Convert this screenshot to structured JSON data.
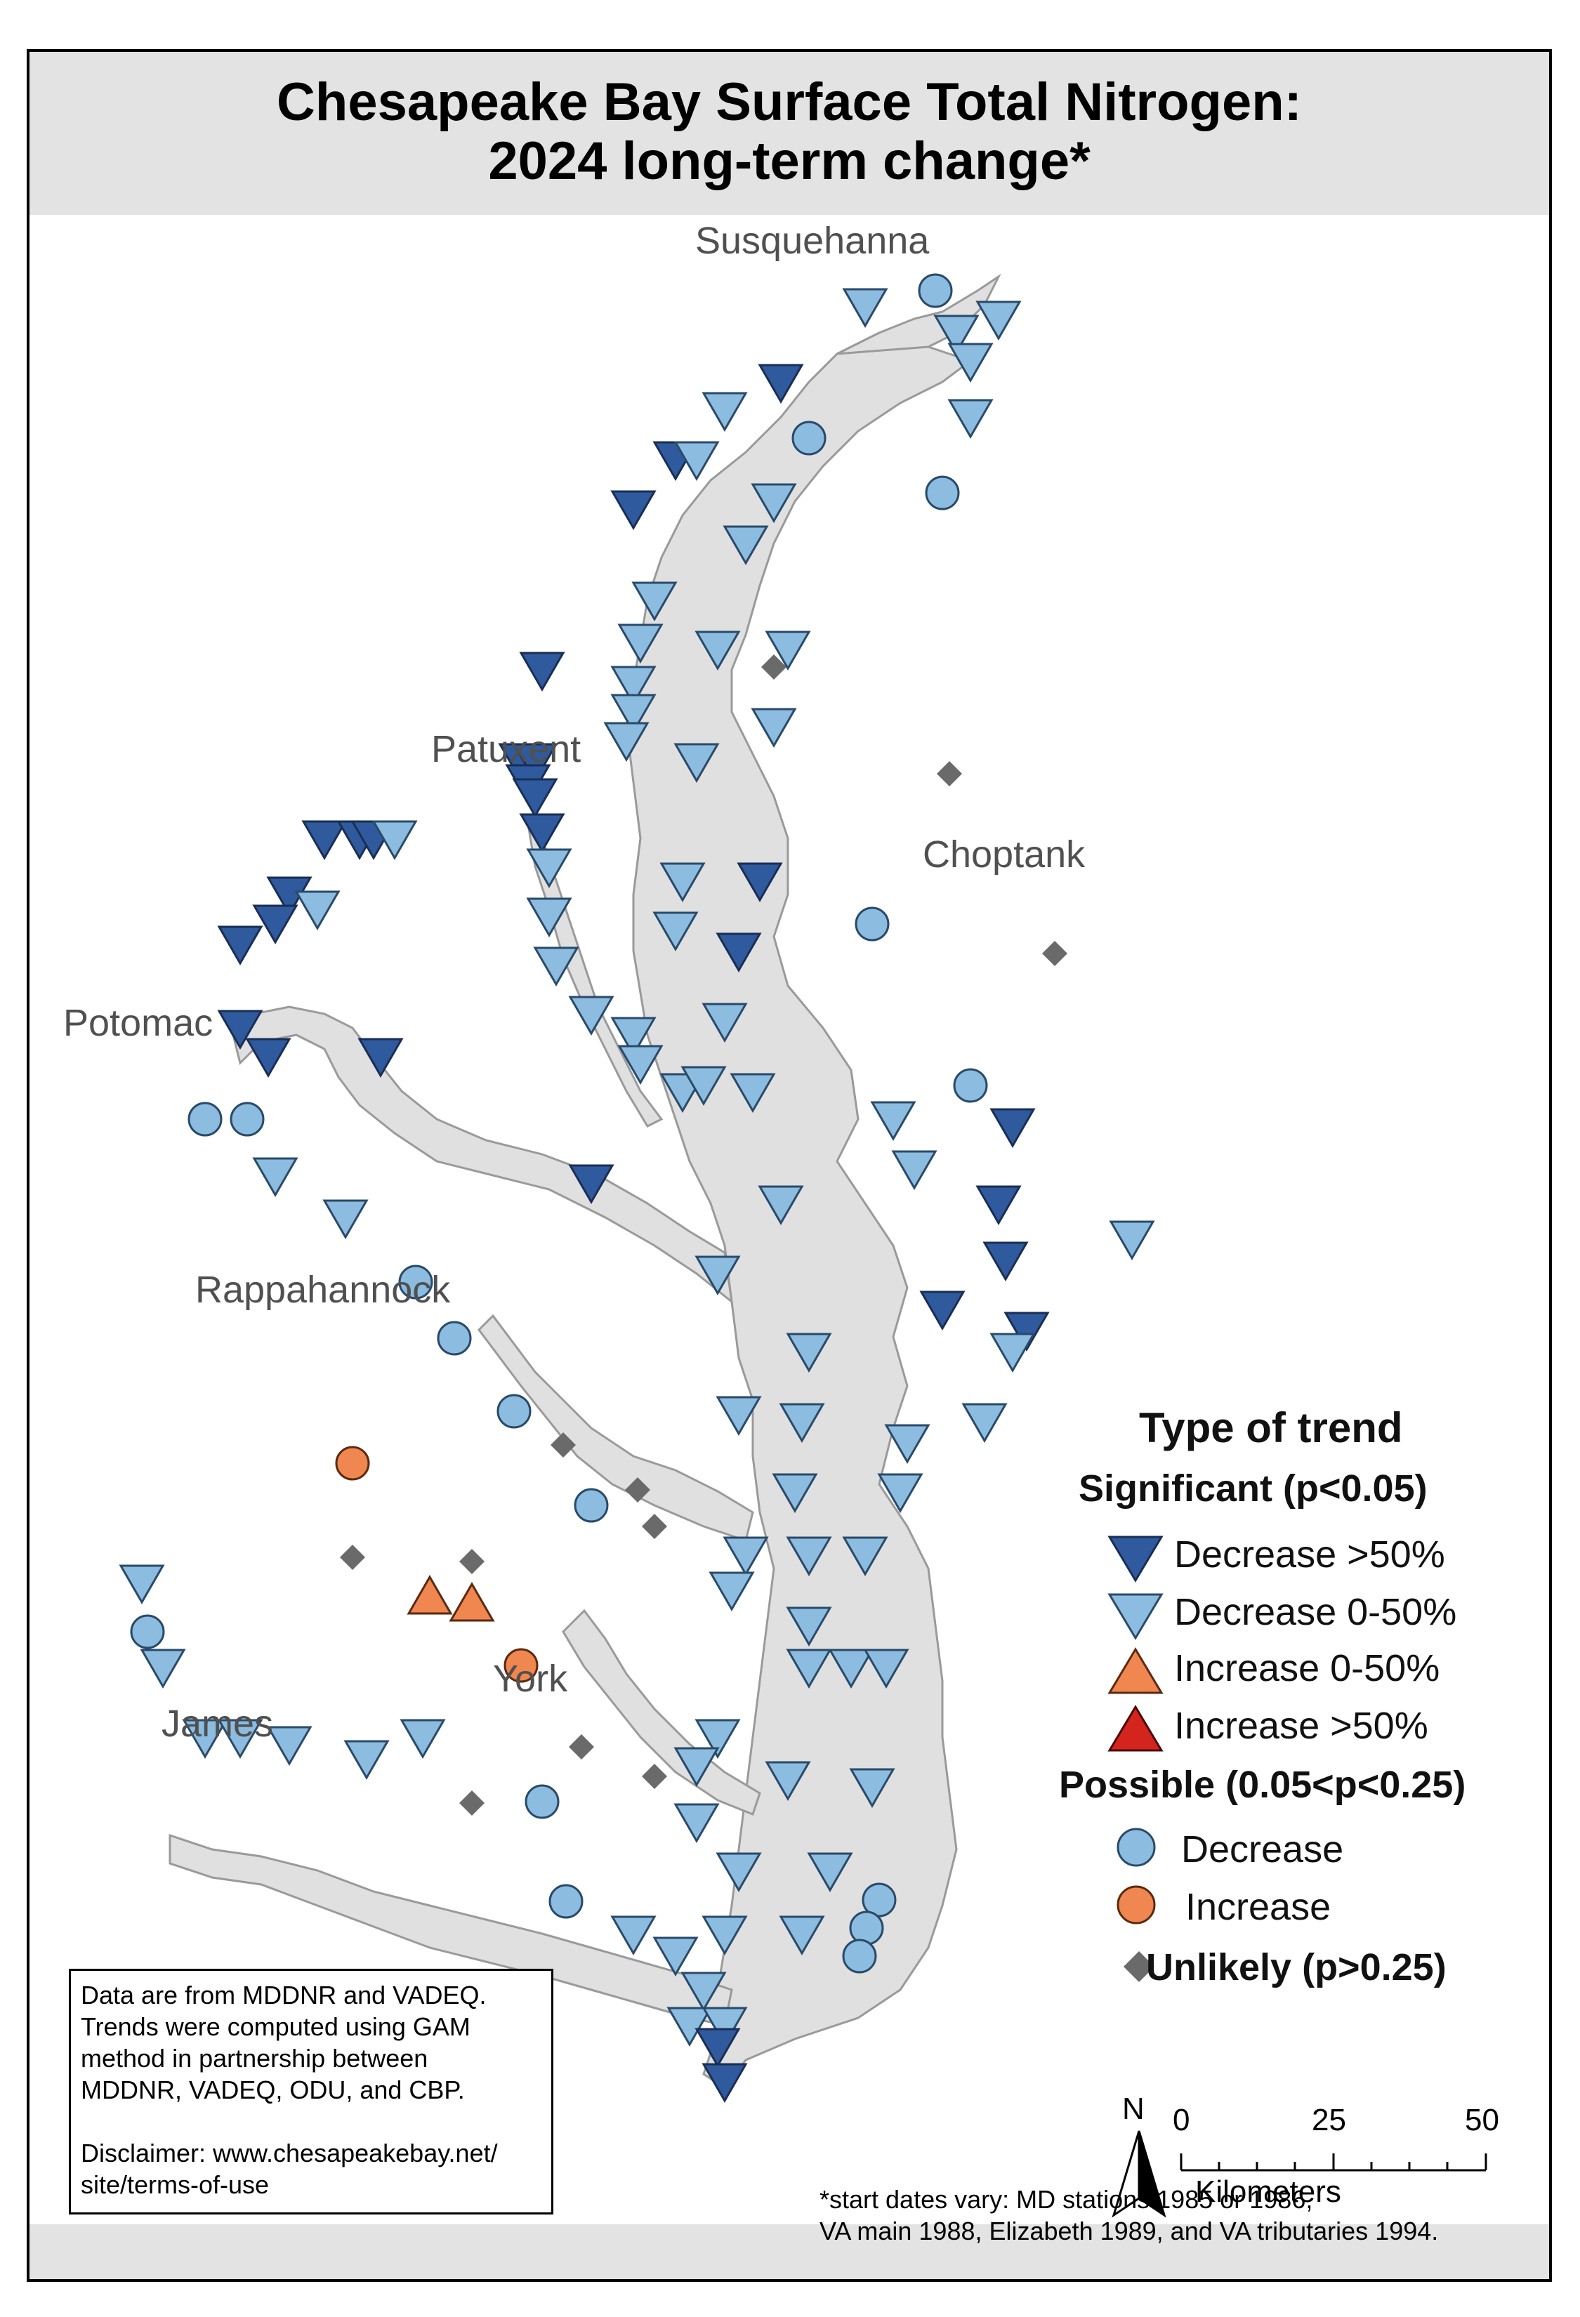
{
  "title": {
    "line1": "Chesapeake Bay Surface Total Nitrogen:",
    "line2": "2024 long-term change*"
  },
  "places": {
    "susquehanna": "Susquehanna",
    "patuxent": "Patuxent",
    "choptank": "Choptank",
    "potomac": "Potomac",
    "rappahannock": "Rappahannock",
    "york": "York",
    "james": "James"
  },
  "legend": {
    "heading": "Type of trend",
    "significant": "Significant (p<0.05)",
    "decrease_gt50": "Decrease >50%",
    "decrease_0_50": "Decrease 0-50%",
    "increase_0_50": "Increase 0-50%",
    "increase_gt50": "Increase >50%",
    "possible": "Possible (0.05<p<0.25)",
    "possible_decrease": "Decrease",
    "possible_increase": "Increase",
    "unlikely": "Unlikely (p>0.25)"
  },
  "colors": {
    "decrease_gt50": "#2f5a9e",
    "decrease_0_50": "#8cbde0",
    "increase_0_50": "#f08650",
    "increase_gt50": "#d4241e",
    "possible_decrease": "#8cbde0",
    "possible_increase": "#f08650",
    "unlikely": "#6a6a6a",
    "water": "#e0e0e0",
    "shore": "#9a9a9a"
  },
  "info": {
    "line1": "Data are from MDDNR and VADEQ.",
    "line2": "Trends were computed using GAM",
    "line3": "method in partnership between",
    "line4": "MDDNR, VADEQ, ODU, and CBP.",
    "line5": "Disclaimer: www.chesapeakebay.net/",
    "line6": "site/terms-of-use"
  },
  "footnote": {
    "line1": "*start dates vary: MD stations 1985 or 1986,",
    "line2": "VA main 1988, Elizabeth 1989, and VA tributaries 1994."
  },
  "scale": {
    "north": "N",
    "ticks": [
      "0",
      "25",
      "50"
    ],
    "unit": "Kilometers"
  },
  "map_data": {
    "description_types": [
      "dec_gt50",
      "dec_0_50",
      "poss_dec",
      "poss_inc",
      "unlikely"
    ],
    "stations_dec_gt50_count": 22,
    "stations_dec_0_50_count": 84,
    "stations_poss_dec_count": 20,
    "stations_poss_inc_count": 2,
    "stations_unlikely_count": 11
  }
}
